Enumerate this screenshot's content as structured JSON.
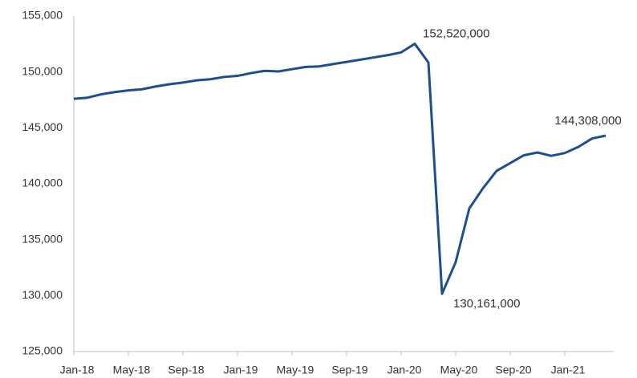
{
  "chart_data": {
    "type": "line",
    "categories": [
      "Jan-18",
      null,
      null,
      null,
      "May-18",
      null,
      null,
      null,
      "Sep-18",
      null,
      null,
      null,
      "Jan-19",
      null,
      null,
      null,
      "May-19",
      null,
      null,
      null,
      "Sep-19",
      null,
      null,
      null,
      "Jan-20",
      null,
      null,
      null,
      "May-20",
      null,
      null,
      null,
      "Sep-20",
      null,
      null,
      null,
      "Jan-21",
      null,
      null,
      null
    ],
    "series": [
      {
        "color": "#1f4e8f",
        "values": [
          147600,
          147700,
          148000,
          148200,
          148350,
          148450,
          148700,
          148900,
          149050,
          149250,
          149350,
          149550,
          149650,
          149900,
          150100,
          150050,
          150250,
          150450,
          150500,
          150700,
          150900,
          151100,
          151300,
          151500,
          151750,
          152520,
          150850,
          130161,
          133000,
          137800,
          139600,
          141150,
          141850,
          142550,
          142800,
          142500,
          142750,
          143300,
          144050,
          144308
        ],
        "value_labels": [
          null,
          null,
          null,
          null,
          null,
          null,
          null,
          null,
          null,
          null,
          null,
          null,
          null,
          null,
          null,
          null,
          null,
          null,
          null,
          null,
          null,
          null,
          null,
          null,
          null,
          "152,520,000",
          null,
          "130,161,000",
          null,
          null,
          null,
          null,
          null,
          null,
          null,
          null,
          null,
          null,
          null,
          "144,308,000"
        ]
      }
    ],
    "ylim": [
      125000,
      155000
    ],
    "yticks": [
      {
        "value": 125000,
        "label": "125,000"
      },
      {
        "value": 130000,
        "label": "130,000"
      },
      {
        "value": 135000,
        "label": "135,000"
      },
      {
        "value": 140000,
        "label": "140,000"
      },
      {
        "value": 145000,
        "label": "145,000"
      },
      {
        "value": 150000,
        "label": "150,000"
      },
      {
        "value": 155000,
        "label": "155,000"
      }
    ],
    "grid": false
  }
}
